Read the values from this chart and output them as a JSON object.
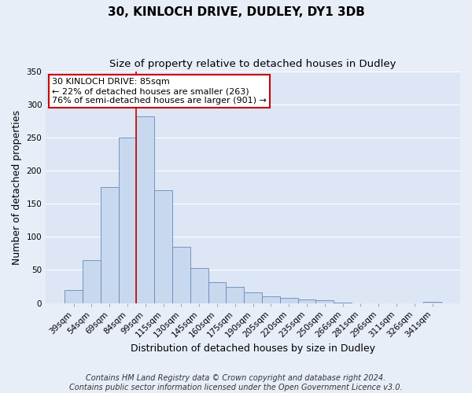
{
  "title_line1": "30, KINLOCH DRIVE, DUDLEY, DY1 3DB",
  "title_line2": "Size of property relative to detached houses in Dudley",
  "xlabel": "Distribution of detached houses by size in Dudley",
  "ylabel": "Number of detached properties",
  "bar_labels": [
    "39sqm",
    "54sqm",
    "69sqm",
    "84sqm",
    "99sqm",
    "115sqm",
    "130sqm",
    "145sqm",
    "160sqm",
    "175sqm",
    "190sqm",
    "205sqm",
    "220sqm",
    "235sqm",
    "250sqm",
    "266sqm",
    "281sqm",
    "296sqm",
    "311sqm",
    "326sqm",
    "341sqm"
  ],
  "bar_values": [
    20,
    65,
    175,
    250,
    282,
    170,
    85,
    53,
    31,
    24,
    16,
    10,
    8,
    5,
    4,
    1,
    0,
    0,
    0,
    0,
    2
  ],
  "bar_color": "#c8d8ee",
  "bar_edge_color": "#6888b8",
  "bar_width": 1.0,
  "vline_index": 3,
  "vline_color": "#cc0000",
  "ylim": [
    0,
    350
  ],
  "yticks": [
    0,
    50,
    100,
    150,
    200,
    250,
    300,
    350
  ],
  "annotation_title": "30 KINLOCH DRIVE: 85sqm",
  "annotation_line2": "← 22% of detached houses are smaller (263)",
  "annotation_line3": "76% of semi-detached houses are larger (901) →",
  "annotation_box_color": "#ffffff",
  "annotation_box_edge": "#cc0000",
  "footer_line1": "Contains HM Land Registry data © Crown copyright and database right 2024.",
  "footer_line2": "Contains public sector information licensed under the Open Government Licence v3.0.",
  "background_color": "#e8eef8",
  "plot_bg_color": "#dce6f5",
  "grid_color": "#ffffff",
  "title_fontsize": 11,
  "subtitle_fontsize": 9.5,
  "axis_label_fontsize": 9,
  "tick_fontsize": 7.5,
  "footer_fontsize": 7,
  "annot_fontsize": 8
}
